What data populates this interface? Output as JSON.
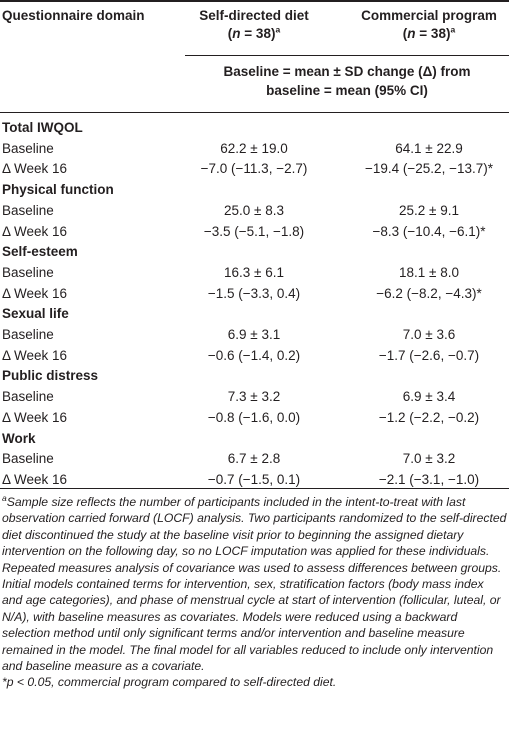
{
  "header": {
    "domain_label": "Questionnaire domain",
    "group_a": {
      "name": "Self-directed diet",
      "n_var": "n",
      "n_eq": " = 38)",
      "sup": "a"
    },
    "group_b": {
      "name": "Commercial program",
      "n_var": "n",
      "n_eq": " = 38)",
      "sup": "a"
    },
    "subheader_line1": "Baseline = mean ± SD change (Δ) from",
    "subheader_line2": "baseline = mean (95% CI)"
  },
  "sections": [
    {
      "title": "Total IWQOL",
      "rows": [
        {
          "label": "Baseline",
          "a": "62.2 ± 19.0",
          "b": "64.1 ± 22.9"
        },
        {
          "label": "Δ Week 16",
          "a": "−7.0 (−11.3, −2.7)",
          "b": "−19.4 (−25.2, −13.7)*"
        }
      ]
    },
    {
      "title": "Physical function",
      "rows": [
        {
          "label": "Baseline",
          "a": "25.0 ± 8.3",
          "b": "25.2 ± 9.1"
        },
        {
          "label": "Δ Week 16",
          "a": "−3.5 (−5.1, −1.8)",
          "b": "−8.3 (−10.4, −6.1)*"
        }
      ]
    },
    {
      "title": "Self-esteem",
      "rows": [
        {
          "label": "Baseline",
          "a": "16.3 ± 6.1",
          "b": "18.1 ± 8.0"
        },
        {
          "label": "Δ Week 16",
          "a": "−1.5 (−3.3, 0.4)",
          "b": "−6.2 (−8.2, −4.3)*"
        }
      ]
    },
    {
      "title": "Sexual life",
      "rows": [
        {
          "label": "Baseline",
          "a": "6.9 ± 3.1",
          "b": "7.0 ± 3.6"
        },
        {
          "label": "Δ Week 16",
          "a": "−0.6 (−1.4, 0.2)",
          "b": "−1.7 (−2.6, −0.7)"
        }
      ]
    },
    {
      "title": "Public distress",
      "rows": [
        {
          "label": "Baseline",
          "a": "7.3 ± 3.2",
          "b": "6.9 ± 3.4"
        },
        {
          "label": "Δ Week 16",
          "a": "−0.8 (−1.6, 0.0)",
          "b": "−1.2 (−2.2, −0.2)"
        }
      ]
    },
    {
      "title": "Work",
      "rows": [
        {
          "label": "Baseline",
          "a": "6.7 ± 2.8",
          "b": "7.0 ± 3.2"
        },
        {
          "label": "Δ Week 16",
          "a": "−0.7 (−1.5, 0.1)",
          "b": "−2.1 (−3.1, −1.0)"
        }
      ]
    }
  ],
  "footnotes": {
    "a_marker": "a",
    "a_text": "Sample size reflects the number of participants included in the intent-to-treat with last observation carried forward (LOCF) analysis. Two participants randomized to the self-directed diet discontinued the study at the baseline visit prior to beginning the assigned dietary intervention on the following day, so no LOCF imputation was applied for these individuals. Repeated measures analysis of covariance was used to assess differences between groups. Initial models contained terms for intervention, sex, stratification factors (body mass index and age categories), and phase of menstrual cycle at start of intervention (follicular, luteal, or N/A), with baseline measures as covariates. Models were reduced using a backward selection method until only significant terms and/or intervention and baseline measure remained in the model. The final model for all variables reduced to include only intervention and baseline measure as a covariate.",
    "star_text": "*p < 0.05, commercial program compared to self-directed diet."
  }
}
